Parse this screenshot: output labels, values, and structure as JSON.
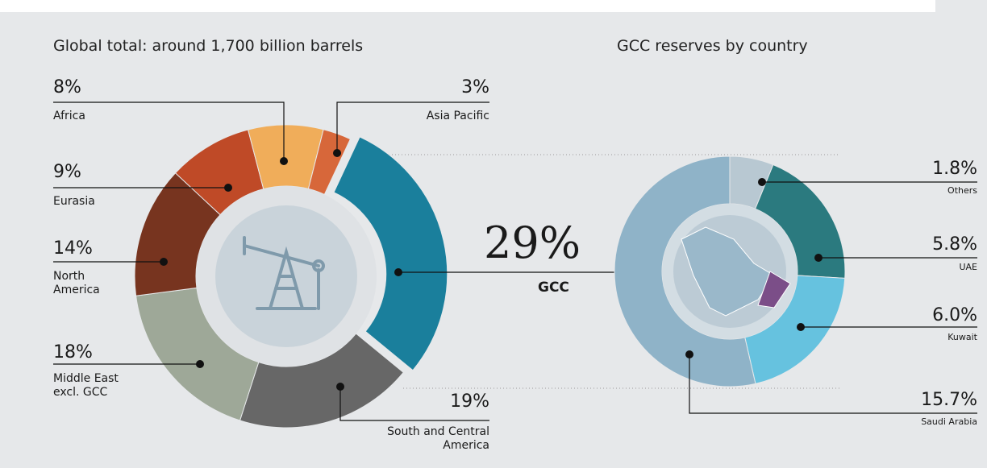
{
  "chart_data": [
    {
      "type": "donut",
      "title": "Global total: around 1,700 billion barrels",
      "categories": [
        "GCC",
        "South and Central America",
        "Middle East excl. GCC",
        "North America",
        "Eurasia",
        "Africa",
        "Asia Pacific"
      ],
      "values": [
        29,
        19,
        18,
        14,
        9,
        8,
        3
      ],
      "value_labels": [
        "29%",
        "19%",
        "18%",
        "14%",
        "9%",
        "8%",
        "3%"
      ],
      "colors": [
        "#1a7f9c",
        "#676767",
        "#9ea898",
        "#77341f",
        "#bf4a27",
        "#f0ad5a",
        "#d7673a"
      ]
    },
    {
      "type": "donut",
      "title": "GCC reserves by country",
      "categories": [
        "Others",
        "UAE",
        "Kuwait",
        "Saudi Arabia"
      ],
      "values": [
        1.8,
        5.8,
        6.0,
        15.7
      ],
      "value_labels": [
        "1.8%",
        "5.8%",
        "6.0%",
        "15.7%"
      ],
      "colors": [
        "#b8c8d2",
        "#2b7a7f",
        "#66c2df",
        "#8fb3c8"
      ]
    }
  ]
}
